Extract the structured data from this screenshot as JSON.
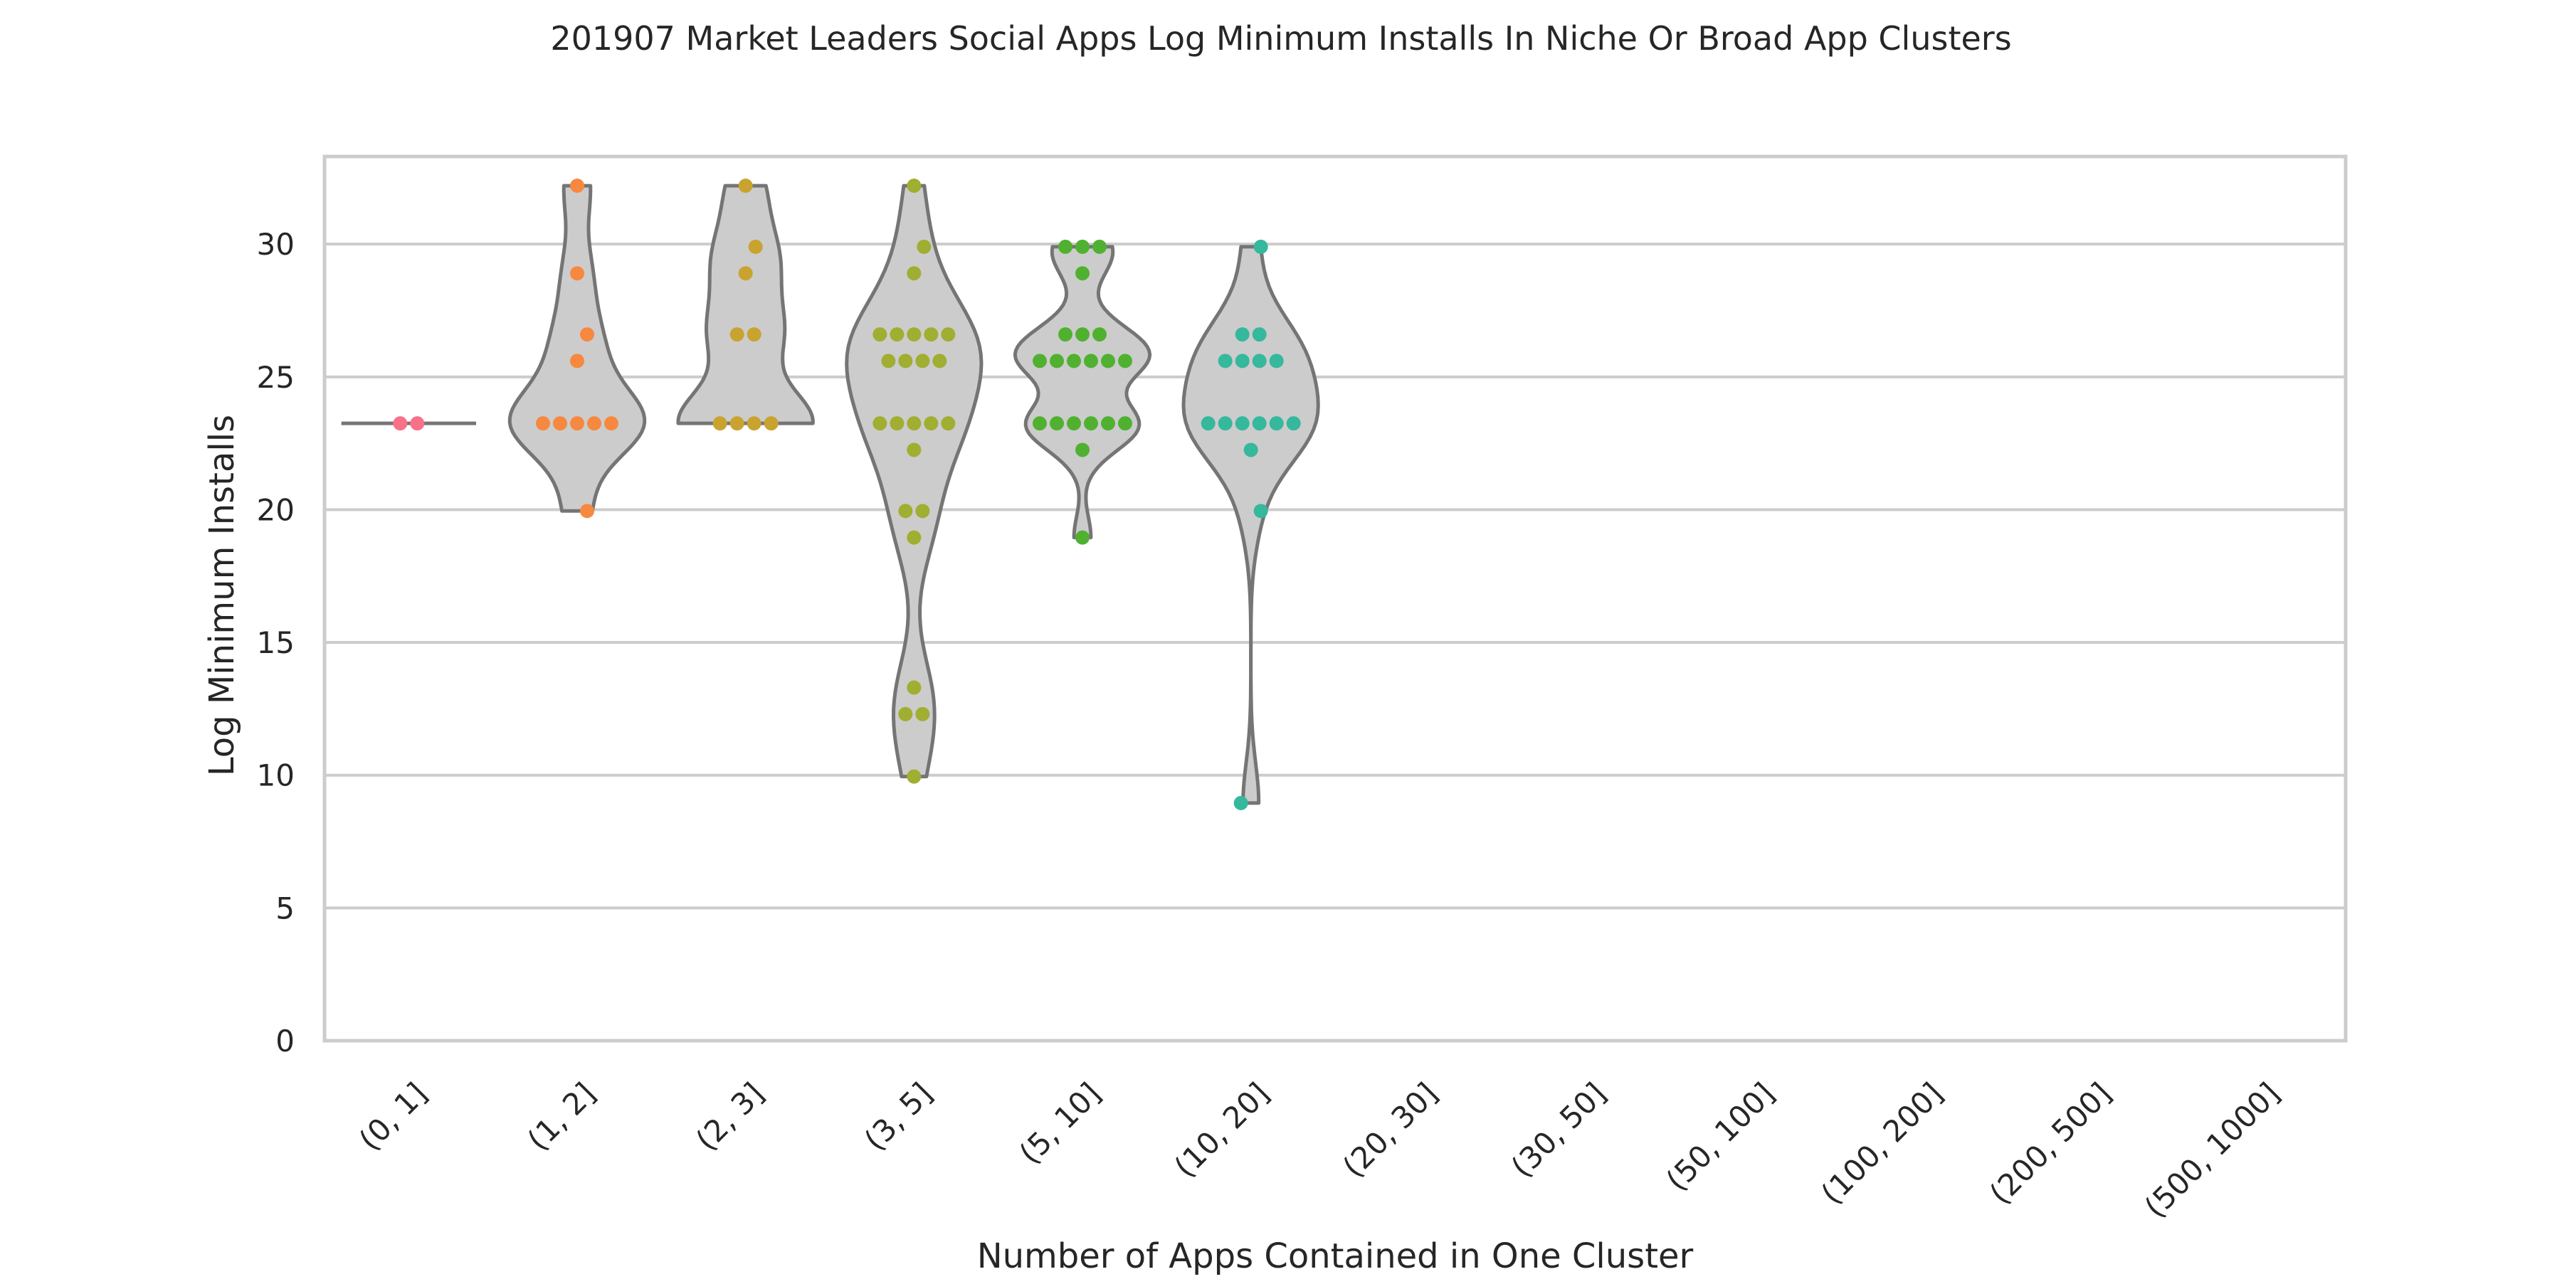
{
  "chart_data": {
    "type": "violin",
    "title": "201907 Market Leaders Social Apps Log Minimum Installs In Niche Or Broad App Clusters",
    "xlabel": "Number of Apps Contained in One Cluster",
    "ylabel": "Log Minimum Installs",
    "ylim": [
      0,
      33.3
    ],
    "yticks": [
      0,
      5,
      10,
      15,
      20,
      25,
      30
    ],
    "grid": "horizontal",
    "legend": "none",
    "categories": [
      "(0, 1]",
      "(1, 2]",
      "(2, 3]",
      "(3, 5]",
      "(5, 10]",
      "(10, 20]",
      "(20, 30]",
      "(30, 50]",
      "(50, 100]",
      "(100, 200]",
      "(200, 500]",
      "(500, 1000]"
    ],
    "colors": [
      "#f77189",
      "#f7883f",
      "#c9a32f",
      "#a0ae31",
      "#50b131",
      "#35b89c",
      "#36ada4",
      "#38a9c5",
      "#6e9bf4",
      "#cc7af4",
      "#f565cc",
      "#f66ba0"
    ],
    "violin_color": "#cccccc",
    "violin_edge": "#757575",
    "points": [
      [
        23.25,
        23.25
      ],
      [
        32.2,
        28.9,
        26.6,
        25.6,
        23.25,
        23.25,
        23.25,
        23.25,
        23.25,
        19.95
      ],
      [
        32.2,
        29.9,
        28.9,
        26.6,
        26.6,
        23.25,
        23.25,
        23.25,
        23.25
      ],
      [
        32.2,
        29.9,
        28.9,
        26.6,
        26.6,
        26.6,
        26.6,
        26.6,
        25.6,
        25.6,
        25.6,
        25.6,
        23.25,
        23.25,
        23.25,
        23.25,
        23.25,
        22.25,
        19.95,
        19.95,
        18.95,
        13.3,
        12.3,
        12.3,
        9.95
      ],
      [
        29.9,
        29.9,
        29.9,
        28.9,
        26.6,
        26.6,
        26.6,
        25.6,
        25.6,
        25.6,
        25.6,
        25.6,
        25.6,
        23.25,
        23.25,
        23.25,
        23.25,
        23.25,
        23.25,
        22.25,
        18.95
      ],
      [
        29.9,
        26.6,
        26.6,
        25.6,
        25.6,
        25.6,
        25.6,
        23.25,
        23.25,
        23.25,
        23.25,
        23.25,
        23.25,
        22.25,
        19.95,
        8.95
      ],
      [],
      [],
      [],
      [],
      [],
      []
    ]
  }
}
